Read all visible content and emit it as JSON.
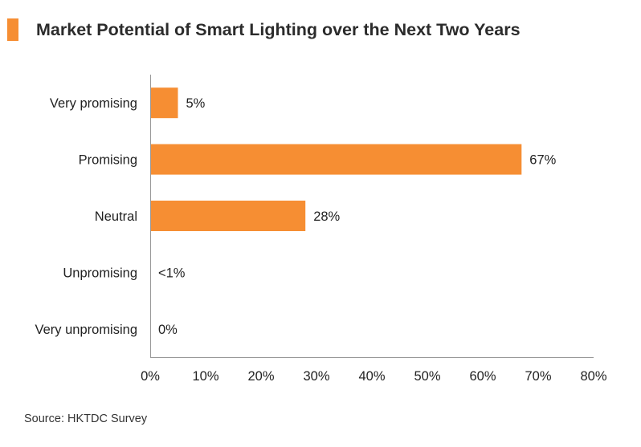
{
  "title": "Market Potential of Smart Lighting over the Next Two Years",
  "source": "Source: HKTDC Survey",
  "colors": {
    "accent": "#F68E33",
    "bar": "#F68E33",
    "axis": "#999999",
    "text": "#222222"
  },
  "chart_data": {
    "type": "bar",
    "orientation": "horizontal",
    "title": "Market Potential of Smart Lighting over the Next Two Years",
    "xlabel": "",
    "ylabel": "",
    "categories": [
      "Very promising",
      "Promising",
      "Neutral",
      "Unpromising",
      "Very unpromising"
    ],
    "values": [
      5,
      67,
      28,
      0.5,
      0
    ],
    "data_labels": [
      "5%",
      "67%",
      "28%",
      "<1%",
      "0%"
    ],
    "xlim": [
      0,
      80
    ],
    "xticks": [
      0,
      10,
      20,
      30,
      40,
      50,
      60,
      70,
      80
    ],
    "xtick_labels": [
      "0%",
      "10%",
      "20%",
      "30%",
      "40%",
      "50%",
      "60%",
      "70%",
      "80%"
    ],
    "grid": false,
    "legend": "none"
  }
}
